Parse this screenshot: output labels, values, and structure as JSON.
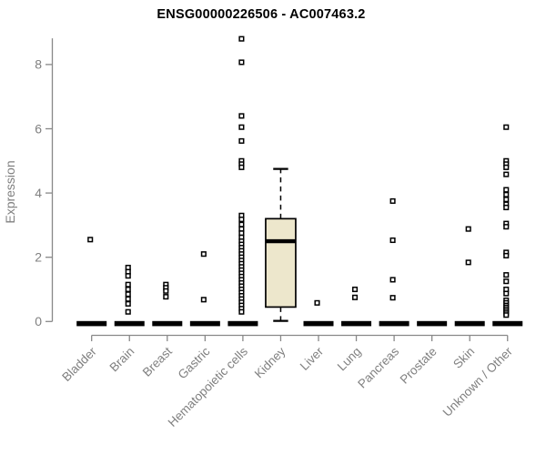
{
  "title": "ENSG00000226506 - AC007463.2",
  "chart_data": {
    "type": "boxplot",
    "title": "ENSG00000226506 - AC007463.2",
    "xlabel": "",
    "ylabel": "Expression",
    "yticks": [
      0,
      2,
      4,
      6,
      8
    ],
    "ylim": [
      0,
      8.9
    ],
    "grid": false,
    "legend": false,
    "categories": [
      "Bladder",
      "Brain",
      "Breast",
      "Gastric",
      "Hematopoietic cells",
      "Kidney",
      "Liver",
      "Lung",
      "Pancreas",
      "Prostate",
      "Skin",
      "Unknown / Other"
    ],
    "boxes": [
      {
        "category": "Bladder",
        "collapsed": true,
        "median": 0,
        "outliers": [
          2.55
        ]
      },
      {
        "category": "Brain",
        "collapsed": true,
        "median": 0,
        "outliers": [
          1.68,
          1.55,
          1.42,
          1.15,
          1.0,
          0.85,
          0.7,
          0.55,
          0.3
        ]
      },
      {
        "category": "Breast",
        "collapsed": true,
        "median": 0,
        "outliers": [
          1.15,
          1.05,
          0.95,
          0.77
        ]
      },
      {
        "category": "Gastric",
        "collapsed": true,
        "median": 0,
        "outliers": [
          2.1,
          0.68
        ]
      },
      {
        "category": "Hematopoietic cells",
        "collapsed": true,
        "median": 0,
        "outliers": [
          8.8,
          8.07,
          6.4,
          6.05,
          5.62,
          5.0,
          4.9,
          4.8,
          3.3,
          3.18,
          3.02,
          2.88,
          2.75,
          2.62,
          2.5,
          2.4,
          2.3,
          2.2,
          2.1,
          2.0,
          1.9,
          1.8,
          1.7,
          1.6,
          1.5,
          1.4,
          1.3,
          1.2,
          1.1,
          1.0,
          0.9,
          0.8,
          0.7,
          0.6,
          0.5,
          0.4,
          0.3
        ]
      },
      {
        "category": "Kidney",
        "collapsed": false,
        "whisker_low": 0.02,
        "q1": 0.45,
        "median": 2.5,
        "q3": 3.2,
        "whisker_high": 4.75,
        "outliers": []
      },
      {
        "category": "Liver",
        "collapsed": true,
        "median": 0,
        "outliers": [
          0.58
        ]
      },
      {
        "category": "Lung",
        "collapsed": true,
        "median": 0,
        "outliers": [
          1.0,
          0.75
        ]
      },
      {
        "category": "Pancreas",
        "collapsed": true,
        "median": 0,
        "outliers": [
          3.75,
          2.53,
          1.3,
          0.74
        ]
      },
      {
        "category": "Prostate",
        "collapsed": true,
        "median": 0,
        "outliers": []
      },
      {
        "category": "Skin",
        "collapsed": true,
        "median": 0,
        "outliers": [
          2.88,
          1.84
        ]
      },
      {
        "category": "Unknown / Other",
        "collapsed": true,
        "median": 0,
        "outliers": [
          6.05,
          5.0,
          4.9,
          4.8,
          4.58,
          4.1,
          3.95,
          3.8,
          3.65,
          3.55,
          3.05,
          2.95,
          2.15,
          2.05,
          1.45,
          1.25,
          1.0,
          0.87,
          0.66,
          0.58,
          0.5,
          0.44,
          0.38,
          0.32,
          0.26,
          0.2
        ]
      }
    ],
    "style": {
      "box_fill": "#EDE7CC",
      "box_stroke": "#000000",
      "median_color": "#000000",
      "axis_color": "#888888",
      "tick_label_color": "#808080",
      "category_label_color": "#808080",
      "ylabel_color": "#808080",
      "title_color": "#000000",
      "outlier_marker": "open-square",
      "outlier_fill": "#FFFFFF",
      "outlier_stroke": "#000000",
      "background": "#FFFFFF"
    }
  }
}
